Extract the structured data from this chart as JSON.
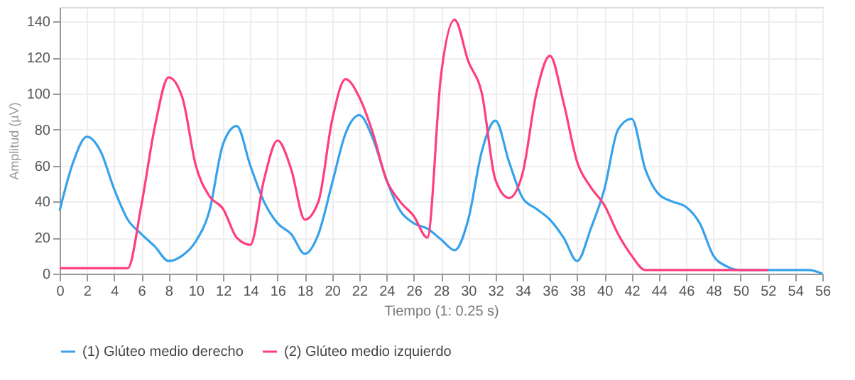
{
  "chart_data": {
    "type": "line",
    "xlabel": "Tiempo (1: 0.25 s)",
    "ylabel": "Amplitud (µV)",
    "x": [
      0,
      1,
      2,
      3,
      4,
      5,
      6,
      7,
      8,
      9,
      10,
      11,
      12,
      13,
      14,
      15,
      16,
      17,
      18,
      19,
      20,
      21,
      22,
      23,
      24,
      25,
      26,
      27,
      28,
      29,
      30,
      31,
      32,
      33,
      34,
      35,
      36,
      37,
      38,
      39,
      40,
      41,
      42,
      43,
      44,
      45,
      46,
      47,
      48,
      49,
      50,
      51,
      52,
      53,
      54,
      55,
      56
    ],
    "series": [
      {
        "name": "(1) Glúteo medio derecho",
        "color": "#36a2eb",
        "values": [
          35,
          62,
          76,
          68,
          47,
          30,
          22,
          15,
          7,
          10,
          18,
          35,
          72,
          82,
          60,
          40,
          28,
          22,
          11,
          22,
          50,
          78,
          88,
          75,
          52,
          35,
          28,
          25,
          19,
          13,
          30,
          68,
          85,
          62,
          42,
          36,
          30,
          20,
          7,
          25,
          47,
          80,
          86,
          58,
          44,
          40,
          37,
          28,
          10,
          4,
          2,
          2,
          2,
          2,
          2,
          2,
          0
        ]
      },
      {
        "name": "(2) Glúteo medio izquierdo",
        "color": "#ff3d7f",
        "values": [
          3,
          3,
          3,
          3,
          3,
          3,
          38,
          82,
          109,
          98,
          60,
          43,
          36,
          20,
          16,
          52,
          74,
          58,
          30,
          40,
          85,
          108,
          98,
          78,
          52,
          40,
          32,
          20,
          110,
          141,
          118,
          100,
          52,
          42,
          56,
          100,
          121,
          95,
          62,
          48,
          38,
          22,
          10,
          2,
          2,
          2,
          2,
          2,
          2,
          2,
          2,
          2,
          2,
          null,
          null,
          null,
          null
        ]
      }
    ],
    "xlim": [
      0,
      56
    ],
    "xticks": [
      0,
      2,
      4,
      6,
      8,
      10,
      12,
      14,
      16,
      18,
      20,
      22,
      24,
      26,
      28,
      30,
      32,
      34,
      36,
      38,
      40,
      42,
      44,
      46,
      48,
      50,
      52,
      54,
      56
    ],
    "ylim": [
      0,
      148
    ],
    "yticks": [
      0,
      20,
      40,
      60,
      80,
      100,
      120,
      140
    ],
    "grid": true,
    "legend": "bottom",
    "marker": "none",
    "line_style": "solid"
  }
}
